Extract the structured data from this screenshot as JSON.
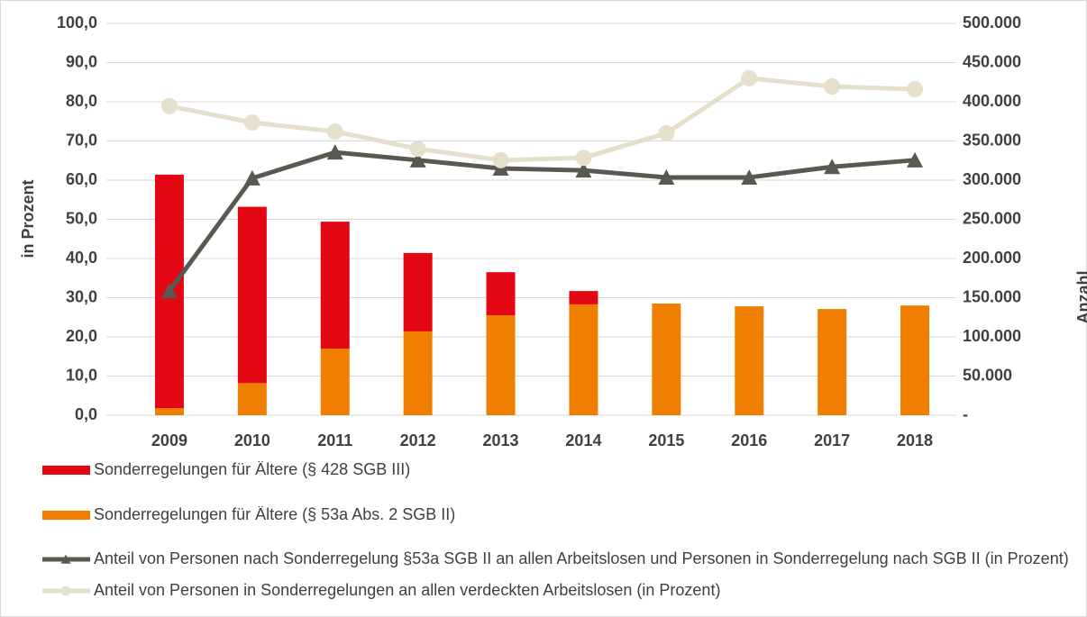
{
  "chart_data": {
    "type": "bar",
    "categories": [
      "2009",
      "2010",
      "2011",
      "2012",
      "2013",
      "2014",
      "2015",
      "2016",
      "2017",
      "2018"
    ],
    "ylabel": "in Prozent",
    "y2label": "Anzahl",
    "ylim": [
      0,
      100
    ],
    "yticks": [
      {
        "value": 0,
        "label": "0,0"
      },
      {
        "value": 10,
        "label": "10,0"
      },
      {
        "value": 20,
        "label": "20,0"
      },
      {
        "value": 30,
        "label": "30,0"
      },
      {
        "value": 40,
        "label": "40,0"
      },
      {
        "value": 50,
        "label": "50,0"
      },
      {
        "value": 60,
        "label": "60,0"
      },
      {
        "value": 70,
        "label": "70,0"
      },
      {
        "value": 80,
        "label": "80,0"
      },
      {
        "value": 90,
        "label": "90,0"
      },
      {
        "value": 100,
        "label": "100,0"
      }
    ],
    "y2lim": [
      0,
      500000
    ],
    "y2ticks": [
      {
        "value": 0,
        "label": "-"
      },
      {
        "value": 50000,
        "label": "50.000"
      },
      {
        "value": 100000,
        "label": "100.000"
      },
      {
        "value": 150000,
        "label": "150.000"
      },
      {
        "value": 200000,
        "label": "200.000"
      },
      {
        "value": 250000,
        "label": "250.000"
      },
      {
        "value": 300000,
        "label": "300.000"
      },
      {
        "value": 350000,
        "label": "350.000"
      },
      {
        "value": 400000,
        "label": "400.000"
      },
      {
        "value": 450000,
        "label": "450.000"
      },
      {
        "value": 500000,
        "label": "500.000"
      }
    ],
    "grid": true,
    "series": [
      {
        "name": "Sonderregelungen für Ältere (§ 428 SGB III)",
        "type": "bar",
        "axis": "y2",
        "color": "#e30613",
        "values": [
          298000,
          225000,
          162000,
          100000,
          55000,
          17000,
          null,
          null,
          null,
          null
        ]
      },
      {
        "name": "Sonderregelungen für Ältere (§ 53a Abs. 2 SGB II)",
        "type": "bar",
        "axis": "y2",
        "color": "#f07f00",
        "values": [
          9000,
          41000,
          85000,
          107000,
          127500,
          141500,
          142500,
          139000,
          135500,
          140000
        ]
      },
      {
        "name": "Anteil von Personen nach Sonderregelung §53a SGB II an allen Arbeitslosen und Personen in Sonderregelung nach SGB II (in Prozent)",
        "type": "line",
        "marker": "triangle",
        "color": "#595952",
        "values": [
          31.7,
          60.5,
          67.1,
          65.1,
          63.0,
          62.5,
          60.7,
          60.7,
          63.4,
          65.1
        ]
      },
      {
        "name": "Anteil von Personen in Sonderregelungen an allen verdeckten Arbeitslosen (in Prozent)",
        "type": "line",
        "marker": "circle",
        "color": "#e5e0cc",
        "values": [
          78.9,
          74.7,
          72.4,
          68.0,
          65.1,
          65.7,
          72.0,
          86.0,
          83.9,
          83.2
        ]
      }
    ]
  }
}
